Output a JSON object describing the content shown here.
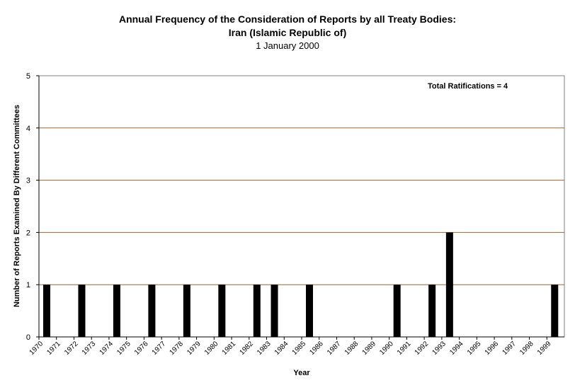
{
  "chart_data": {
    "type": "bar",
    "title": "Annual Frequency of the Consideration of Reports by all Treaty Bodies:",
    "title_line2": "Iran (Islamic Republic of)",
    "subtitle": "1 January 2000",
    "xlabel": "Year",
    "ylabel": "Number of Reports Examined By Different Committees",
    "annotation": "Total Ratifications = 4",
    "ylim": [
      0,
      5
    ],
    "yticks": [
      0,
      1,
      2,
      3,
      4,
      5
    ],
    "grid": true,
    "legend": "none",
    "categories": [
      "1970",
      "1971",
      "1972",
      "1973",
      "1974",
      "1975",
      "1976",
      "1977",
      "1978",
      "1979",
      "1980",
      "1981",
      "1982",
      "1983",
      "1984",
      "1985",
      "1986",
      "1987",
      "1988",
      "1989",
      "1990",
      "1991",
      "1992",
      "1993",
      "1994",
      "1995",
      "1996",
      "1997",
      "1998",
      "1999"
    ],
    "values": [
      1,
      0,
      1,
      0,
      1,
      0,
      1,
      0,
      1,
      0,
      1,
      0,
      1,
      1,
      0,
      1,
      0,
      0,
      0,
      0,
      1,
      0,
      1,
      2,
      0,
      0,
      0,
      0,
      0,
      1
    ],
    "bar_color": "#000000",
    "grid_color": "#996633"
  }
}
